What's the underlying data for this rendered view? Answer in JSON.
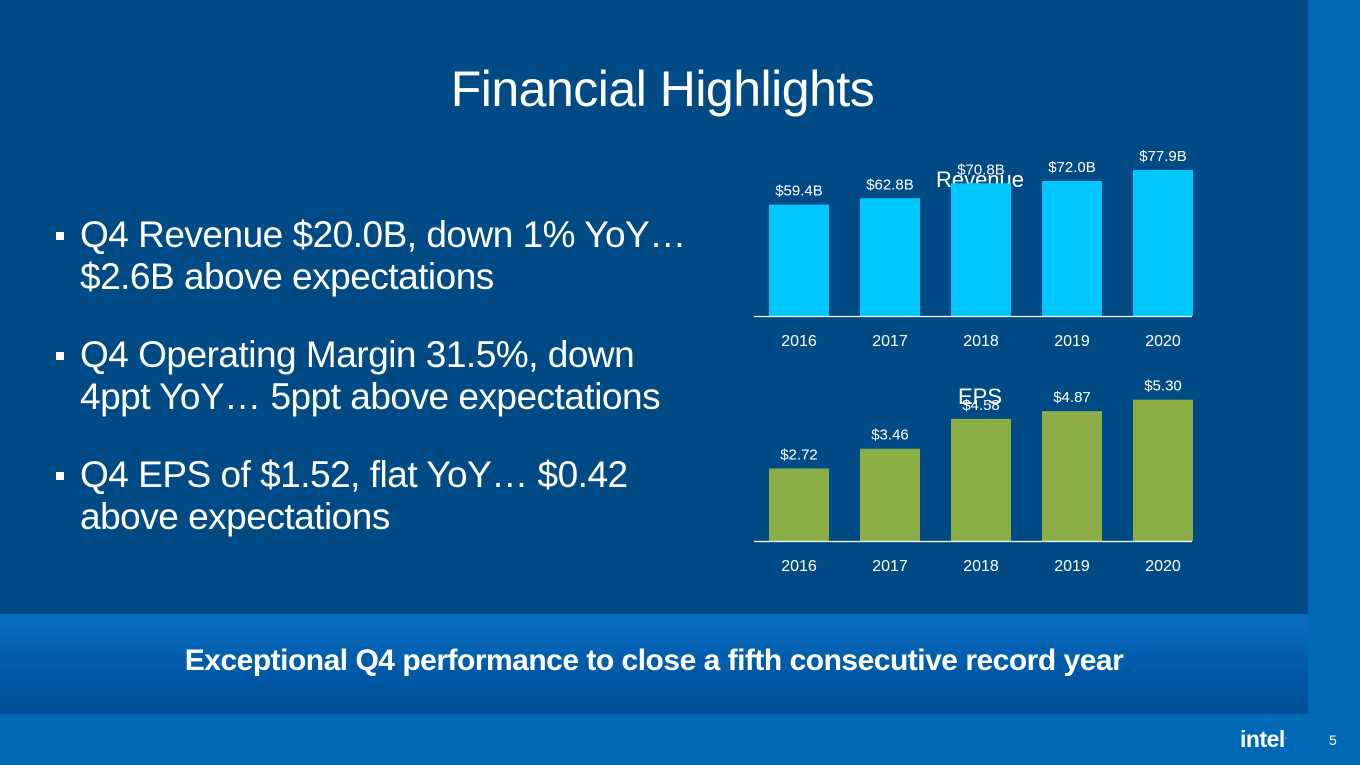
{
  "slide": {
    "title": "Financial Highlights",
    "bullets": [
      "Q4 Revenue $20.0B, down 1% YoY…\n$2.6B above expectations",
      "Q4 Operating Margin 31.5%, down\n4ppt YoY… 5ppt above expectations",
      "Q4 EPS of $1.52, flat YoY… $0.42\nabove expectations"
    ],
    "banner": "Exceptional Q4 performance to close a fifth consecutive record year",
    "logo": "intel",
    "logo_mark": ".",
    "page_number": "5"
  },
  "colors": {
    "background": "#004a86",
    "accent_blue": "#0068b5",
    "revenue_bar": "#00c7fd",
    "eps_bar": "#8bae46"
  },
  "chart_data": [
    {
      "type": "bar",
      "title": "Revenue",
      "categories": [
        "2016",
        "2017",
        "2018",
        "2019",
        "2020"
      ],
      "values": [
        59.4,
        62.8,
        70.8,
        72.0,
        77.9
      ],
      "labels": [
        "$59.4B",
        "$62.8B",
        "$70.8B",
        "$72.0B",
        "$77.9B"
      ],
      "ylim": [
        0,
        80
      ],
      "grid": false,
      "color": "#00c7fd"
    },
    {
      "type": "bar",
      "title": "EPS",
      "categories": [
        "2016",
        "2017",
        "2018",
        "2019",
        "2020"
      ],
      "values": [
        2.72,
        3.46,
        4.58,
        4.87,
        5.3
      ],
      "labels": [
        "$2.72",
        "$3.46",
        "$4.58",
        "$4.87",
        "$5.30"
      ],
      "ylim": [
        0,
        6
      ],
      "grid": false,
      "color": "#8bae46"
    }
  ]
}
